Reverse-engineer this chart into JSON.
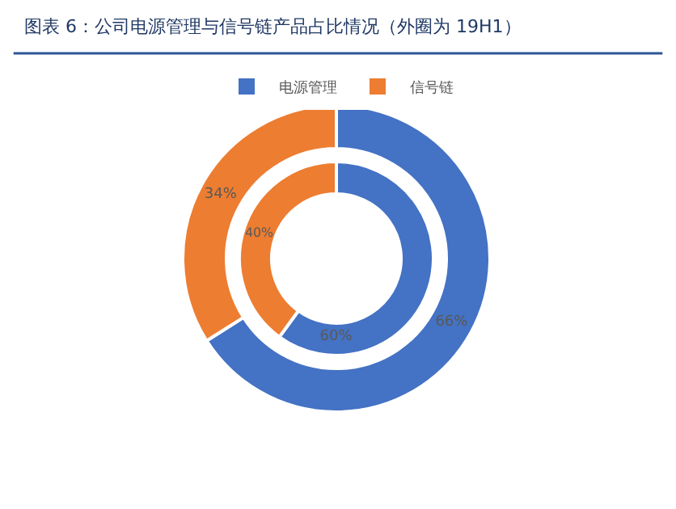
{
  "chart_data": {
    "type": "donut",
    "title": "图表 6：公司电源管理与信号链产品占比情况（外圈为 19H1）",
    "categories": [
      "电源管理",
      "信号链"
    ],
    "colors": [
      "#4472c4",
      "#ed7d31"
    ],
    "legend": "top",
    "series": [
      {
        "values": [
          66,
          34
        ],
        "value_labels": [
          "66%",
          "34%"
        ]
      },
      {
        "values": [
          60,
          40
        ],
        "value_labels": [
          "60%",
          "40%"
        ]
      }
    ]
  }
}
